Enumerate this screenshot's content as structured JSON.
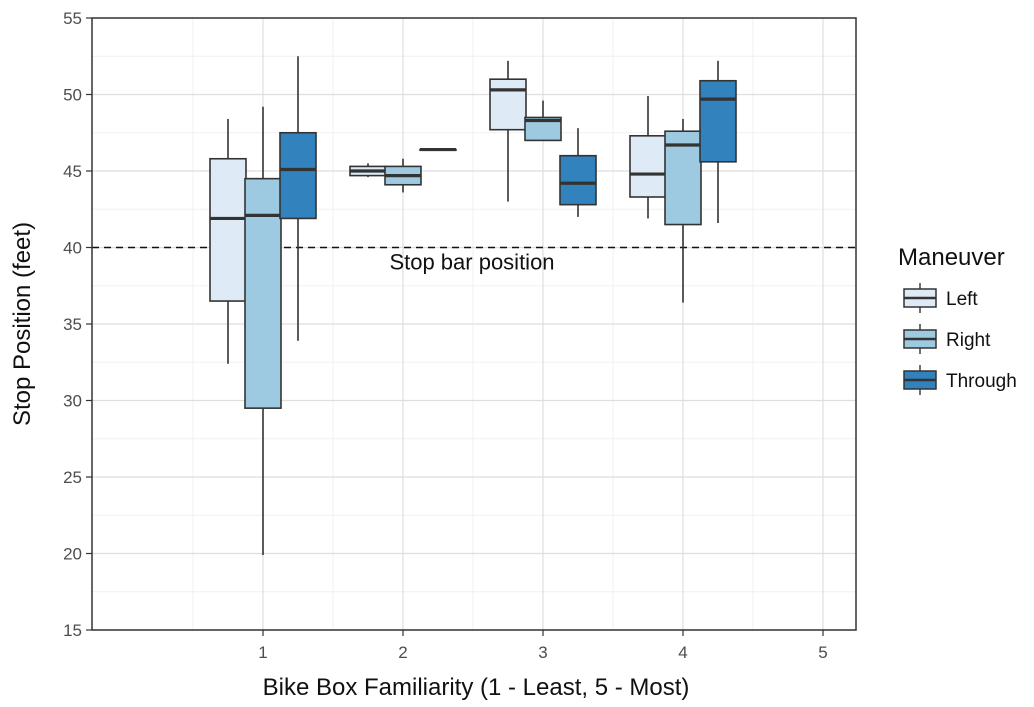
{
  "chart_data": {
    "type": "box",
    "title": "",
    "xlabel": "Bike Box Familiarity (1 - Least, 5 - Most)",
    "ylabel": "Stop Position (feet)",
    "x_ticks": [
      "1",
      "2",
      "3",
      "4",
      "5"
    ],
    "ylim": [
      15,
      55
    ],
    "y_ticks": [
      15,
      20,
      25,
      30,
      35,
      40,
      45,
      50,
      55
    ],
    "grid": true,
    "reference_line": {
      "y": 40,
      "label": "Stop bar position",
      "style": "dashed"
    },
    "legend": {
      "title": "Maneuver",
      "position": "right",
      "entries": [
        {
          "name": "Left",
          "color": "#deebf7"
        },
        {
          "name": "Right",
          "color": "#9ecae1"
        },
        {
          "name": "Through",
          "color": "#3182bd"
        }
      ]
    },
    "boxes": [
      {
        "x": "1",
        "series": "Left",
        "whisker_low": 32.4,
        "q1": 36.5,
        "median": 41.9,
        "q3": 45.8,
        "whisker_high": 48.4
      },
      {
        "x": "1",
        "series": "Right",
        "whisker_low": 19.9,
        "q1": 29.5,
        "median": 42.1,
        "q3": 44.5,
        "whisker_high": 49.2
      },
      {
        "x": "1",
        "series": "Through",
        "whisker_low": 33.9,
        "q1": 41.9,
        "median": 45.1,
        "q3": 47.5,
        "whisker_high": 52.5
      },
      {
        "x": "2",
        "series": "Left",
        "whisker_low": 44.6,
        "q1": 44.7,
        "median": 45.0,
        "q3": 45.3,
        "whisker_high": 45.5
      },
      {
        "x": "2",
        "series": "Right",
        "whisker_low": 43.6,
        "q1": 44.1,
        "median": 44.7,
        "q3": 45.3,
        "whisker_high": 45.8
      },
      {
        "x": "2",
        "series": "Through",
        "whisker_low": 46.4,
        "q1": 46.4,
        "median": 46.4,
        "q3": 46.4,
        "whisker_high": 46.4
      },
      {
        "x": "3",
        "series": "Left",
        "whisker_low": 43.0,
        "q1": 47.7,
        "median": 50.3,
        "q3": 51.0,
        "whisker_high": 52.2
      },
      {
        "x": "3",
        "series": "Right",
        "whisker_low": 47.0,
        "q1": 47.0,
        "median": 48.3,
        "q3": 48.5,
        "whisker_high": 49.6
      },
      {
        "x": "3",
        "series": "Through",
        "whisker_low": 42.0,
        "q1": 42.8,
        "median": 44.2,
        "q3": 46.0,
        "whisker_high": 47.8
      },
      {
        "x": "4",
        "series": "Left",
        "whisker_low": 41.9,
        "q1": 43.3,
        "median": 44.8,
        "q3": 47.3,
        "whisker_high": 49.9
      },
      {
        "x": "4",
        "series": "Right",
        "whisker_low": 36.4,
        "q1": 41.5,
        "median": 46.7,
        "q3": 47.6,
        "whisker_high": 48.4
      },
      {
        "x": "4",
        "series": "Through",
        "whisker_low": 41.6,
        "q1": 45.6,
        "median": 49.7,
        "q3": 50.9,
        "whisker_high": 52.2
      }
    ]
  }
}
